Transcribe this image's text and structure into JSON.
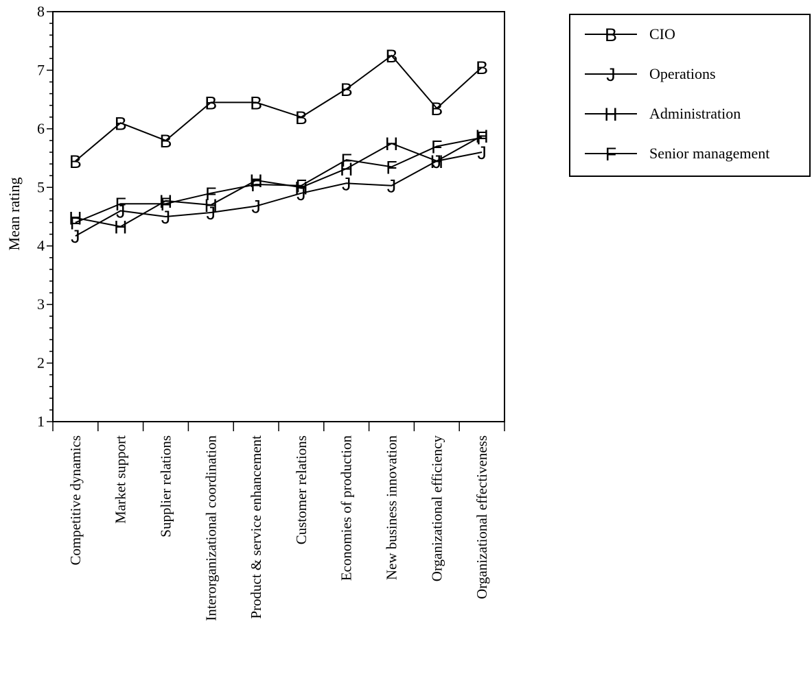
{
  "chart_data": {
    "type": "line",
    "title": "",
    "xlabel": "",
    "ylabel": "Mean rating",
    "ylim": [
      1,
      8
    ],
    "yticks": [
      1,
      2,
      3,
      4,
      5,
      6,
      7,
      8
    ],
    "grid": false,
    "legend_position": "top-right",
    "categories": [
      "Competitive dynamics",
      "Market support",
      "Supplier relations",
      "Interorganizational coordination",
      "Product & service enhancement",
      "Customer relations",
      "Economies of production",
      "New business innovation",
      "Organizational efficiency",
      "Organizational effectiveness"
    ],
    "series": [
      {
        "name": "CIO",
        "marker": "B",
        "values": [
          5.45,
          6.1,
          5.8,
          6.45,
          6.45,
          6.2,
          6.68,
          7.25,
          6.35,
          7.05
        ]
      },
      {
        "name": "Operations",
        "marker": "J",
        "values": [
          4.17,
          4.6,
          4.5,
          4.57,
          4.68,
          4.9,
          5.07,
          5.03,
          5.45,
          5.6
        ]
      },
      {
        "name": "Administration",
        "marker": "H",
        "values": [
          4.48,
          4.33,
          4.77,
          4.7,
          5.12,
          5.0,
          5.32,
          5.75,
          5.45,
          5.88
        ]
      },
      {
        "name": "Senior management",
        "marker": "F",
        "values": [
          4.4,
          4.72,
          4.72,
          4.9,
          5.05,
          5.03,
          5.47,
          5.35,
          5.7,
          5.85
        ]
      }
    ]
  }
}
